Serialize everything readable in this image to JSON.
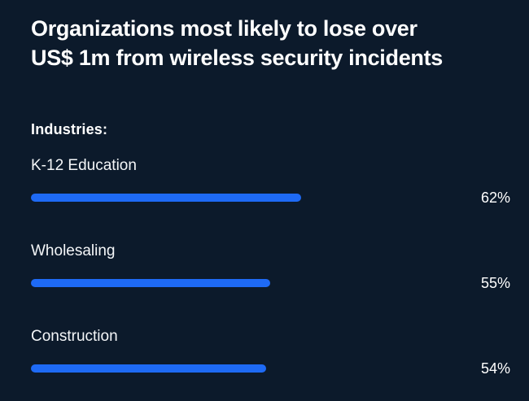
{
  "title": {
    "lines": [
      "Organizations most likely to lose over",
      "US$ 1m from wireless security incidents"
    ]
  },
  "colors": {
    "background": "#0c1a2b",
    "bar": "#1e6af5",
    "title_text": "#ffffff",
    "label_text": "#f4f6f8"
  },
  "chart_data": {
    "type": "bar",
    "orientation": "horizontal",
    "title": "Organizations most likely to lose over US$ 1m from wireless security incidents",
    "group_label": "Industries:",
    "categories": [
      "K-12 Education",
      "Wholesaling",
      "Construction"
    ],
    "values": [
      62,
      55,
      54
    ],
    "value_labels": [
      "62%",
      "55%",
      "54%"
    ],
    "xlim": [
      0,
      100
    ],
    "unit": "%",
    "grid": false,
    "legend": false,
    "value_label_position": "right"
  }
}
